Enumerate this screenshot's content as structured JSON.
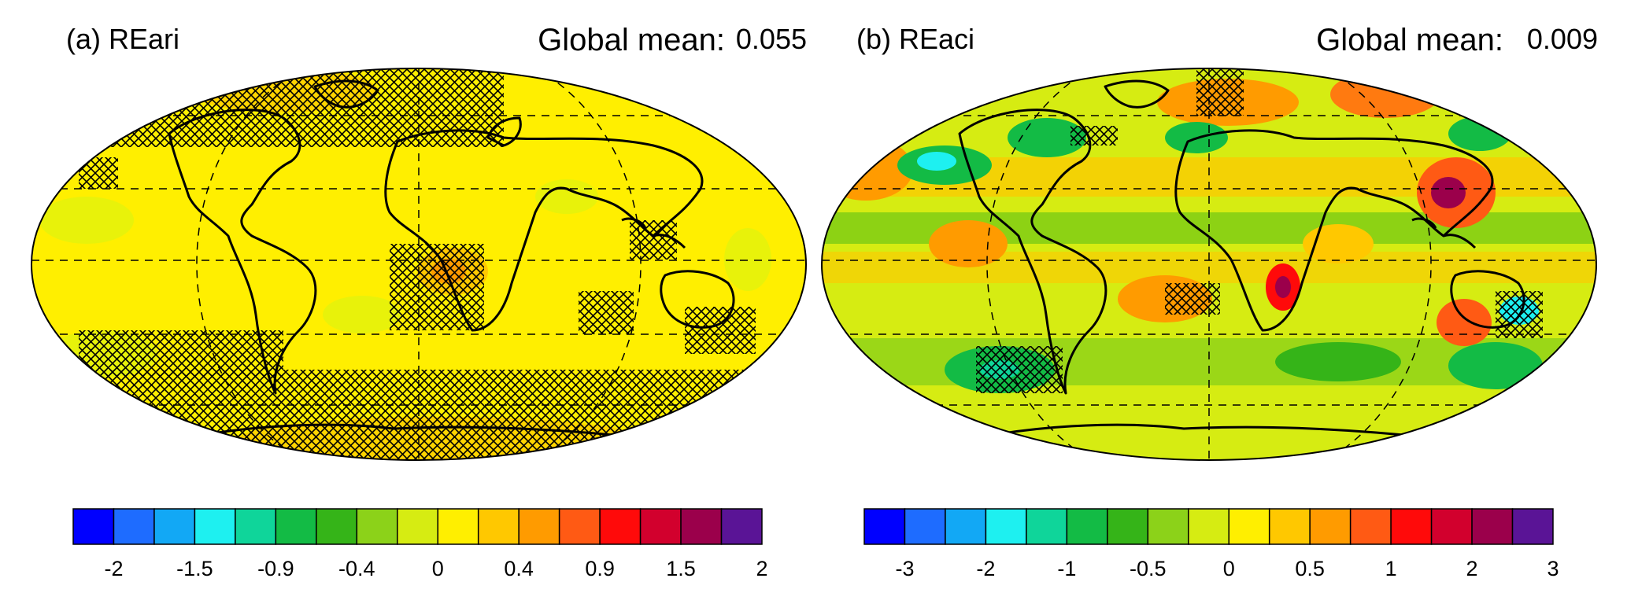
{
  "panels": [
    {
      "label": "(a) REari",
      "global_mean_label": "Global mean:",
      "global_mean_value": "0.055",
      "colorbar": {
        "colors": [
          "#0000ff",
          "#1e6cff",
          "#12a8f5",
          "#1ef0f0",
          "#0fd59a",
          "#13bb45",
          "#35b418",
          "#8cd219",
          "#d6ec12",
          "#ffef00",
          "#ffc800",
          "#ff9b00",
          "#ff5a14",
          "#ff0a0a",
          "#d2002d",
          "#9b004b",
          "#5a1496"
        ],
        "ticks": [
          "-2",
          "-1.5",
          "-0.9",
          "-0.4",
          "0",
          "0.4",
          "0.9",
          "1.5",
          "2"
        ],
        "tick_boundaries": [
          1,
          3,
          5,
          7,
          9,
          11,
          13,
          15,
          17
        ]
      }
    },
    {
      "label": "(b) REaci",
      "global_mean_label": "Global mean:",
      "global_mean_value": "0.009",
      "colorbar": {
        "colors": [
          "#0000ff",
          "#1e6cff",
          "#12a8f5",
          "#1ef0f0",
          "#0fd59a",
          "#13bb45",
          "#35b418",
          "#8cd219",
          "#d6ec12",
          "#ffef00",
          "#ffc800",
          "#ff9b00",
          "#ff5a14",
          "#ff0a0a",
          "#d2002d",
          "#9b004b",
          "#5a1496"
        ],
        "ticks": [
          "-3",
          "-2",
          "-1",
          "-0.5",
          "0",
          "0.5",
          "1",
          "2",
          "3"
        ],
        "tick_boundaries": [
          1,
          3,
          5,
          7,
          9,
          11,
          13,
          15,
          17
        ]
      }
    }
  ]
}
